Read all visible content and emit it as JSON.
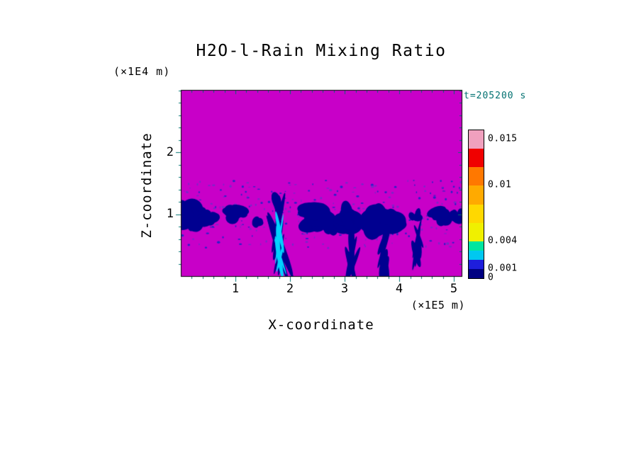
{
  "title": "H2O-l-Rain Mixing Ratio",
  "timestamp": "t=205200 s",
  "axes": {
    "x_label": "X-coordinate",
    "x_unit": "(×1E5 m)",
    "x_ticks": [
      "1",
      "2",
      "3",
      "4",
      "5"
    ],
    "z_label": "Z-coordinate",
    "z_unit": "(×1E4 m)",
    "z_ticks": [
      "1",
      "2"
    ]
  },
  "colorbar": {
    "value_min": 0,
    "value_max": 0.016,
    "labels": [
      {
        "text": "0.015",
        "value": 0.015
      },
      {
        "text": "0.01",
        "value": 0.01
      },
      {
        "text": "0.004",
        "value": 0.004
      },
      {
        "text": "0.001",
        "value": 0.001
      },
      {
        "text": "0",
        "value": 0
      }
    ],
    "segments": [
      {
        "from": 0.014,
        "to": 0.016,
        "color": "#F0A0BE"
      },
      {
        "from": 0.012,
        "to": 0.014,
        "color": "#F00000"
      },
      {
        "from": 0.01,
        "to": 0.012,
        "color": "#FF7800"
      },
      {
        "from": 0.008,
        "to": 0.01,
        "color": "#FFAA00"
      },
      {
        "from": 0.006,
        "to": 0.008,
        "color": "#FFD800"
      },
      {
        "from": 0.004,
        "to": 0.006,
        "color": "#F0F000"
      },
      {
        "from": 0.003,
        "to": 0.004,
        "color": "#00E6A0"
      },
      {
        "from": 0.002,
        "to": 0.003,
        "color": "#00C8F0"
      },
      {
        "from": 0.001,
        "to": 0.002,
        "color": "#1E1EDC"
      },
      {
        "from": 0.0,
        "to": 0.001,
        "color": "#000082"
      }
    ]
  },
  "chart_data": {
    "type": "heatmap",
    "title": "H2O-l-Rain Mixing Ratio",
    "xlabel": "X-coordinate (×1E5 m)",
    "ylabel": "Z-coordinate (×1E4 m)",
    "time_label": "t=205200 s",
    "x_range": [
      0,
      5.14
    ],
    "z_range": [
      0,
      3.01
    ],
    "x_major_ticks": [
      1,
      2,
      3,
      4,
      5
    ],
    "z_major_ticks": [
      1,
      2
    ],
    "minor_tick_step": 0.2,
    "levels": [
      0,
      0.001,
      0.002,
      0.003,
      0.004,
      0.006,
      0.008,
      0.01,
      0.012,
      0.014,
      0.016
    ],
    "background_color": "#C800C8",
    "tick_color": "#007070",
    "blob_color": "#000090",
    "speckles": {
      "count": 260,
      "z_center": 1.0,
      "z_spread": 0.55,
      "colors": [
        "#2820C8",
        "#7828C8"
      ]
    },
    "blobs": [
      {
        "x": 0.1,
        "z": 1.0,
        "rx": 0.24,
        "rz": 0.22,
        "n": 12
      },
      {
        "x": 0.52,
        "z": 0.95,
        "rx": 0.18,
        "rz": 0.13,
        "n": 8
      },
      {
        "x": 1.0,
        "z": 1.0,
        "rx": 0.22,
        "rz": 0.15,
        "n": 9
      },
      {
        "x": 1.38,
        "z": 0.9,
        "rx": 0.1,
        "rz": 0.1,
        "n": 5
      },
      {
        "x": 1.8,
        "z": 1.12,
        "rx": 0.1,
        "rz": 0.2,
        "n": 7
      },
      {
        "x": 1.8,
        "z": 0.6,
        "rx": 0.07,
        "rz": 0.66,
        "n": 10
      },
      {
        "x": 2.42,
        "z": 0.95,
        "rx": 0.32,
        "rz": 0.26,
        "n": 13
      },
      {
        "x": 2.72,
        "z": 0.78,
        "rx": 0.14,
        "rz": 0.18,
        "n": 6
      },
      {
        "x": 3.05,
        "z": 0.92,
        "rx": 0.26,
        "rz": 0.24,
        "n": 11
      },
      {
        "x": 3.12,
        "z": 0.4,
        "rx": 0.06,
        "rz": 0.4,
        "n": 6
      },
      {
        "x": 3.7,
        "z": 0.92,
        "rx": 0.32,
        "rz": 0.27,
        "n": 13
      },
      {
        "x": 3.74,
        "z": 0.33,
        "rx": 0.07,
        "rz": 0.42,
        "n": 6
      },
      {
        "x": 4.28,
        "z": 0.95,
        "rx": 0.12,
        "rz": 0.12,
        "n": 5
      },
      {
        "x": 4.33,
        "z": 0.5,
        "rx": 0.06,
        "rz": 0.45,
        "n": 6
      },
      {
        "x": 4.78,
        "z": 0.97,
        "rx": 0.22,
        "rz": 0.14,
        "n": 8
      },
      {
        "x": 5.05,
        "z": 1.0,
        "rx": 0.13,
        "rz": 0.12,
        "n": 5
      },
      {
        "x": 1.8,
        "z": 0.55,
        "rx": 0.05,
        "rz": 0.5,
        "n": 6,
        "color": "#00D2FF"
      }
    ]
  }
}
